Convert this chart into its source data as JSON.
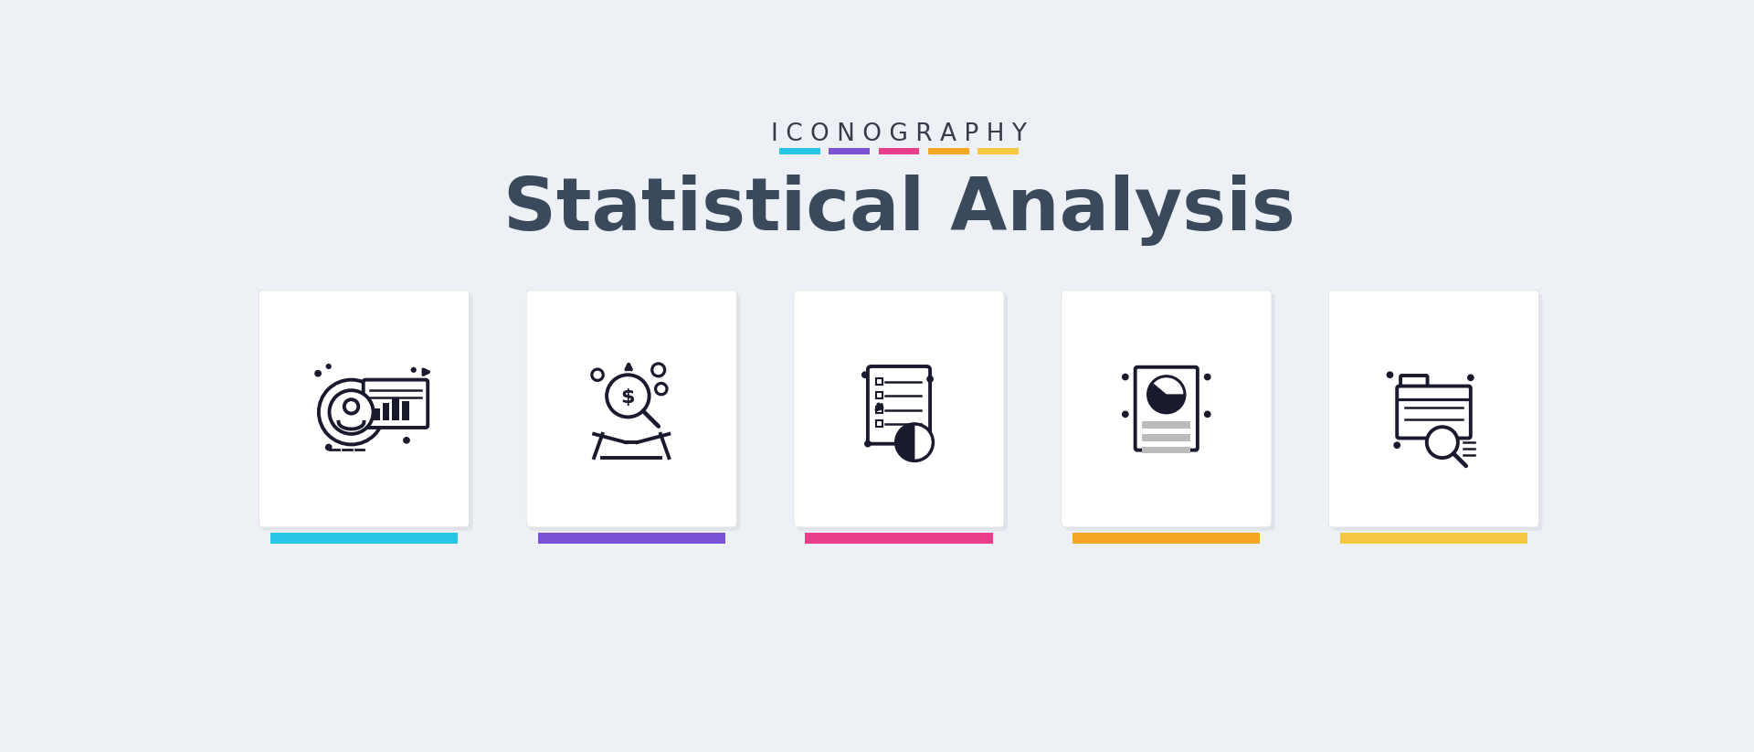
{
  "bg_color": "#edf0f5",
  "title_top": "I C O N O G R A P H Y",
  "title_main": "Statistical Analysis",
  "title_top_color": "#3a3a4a",
  "title_main_color": "#3a4a5c",
  "color_bars": [
    "#29c5e6",
    "#7b52d3",
    "#e83e8c",
    "#f5a623",
    "#f5c842"
  ],
  "card_bg": "#ffffff",
  "icon_color": "#1a1a2e",
  "n_cards": 5
}
